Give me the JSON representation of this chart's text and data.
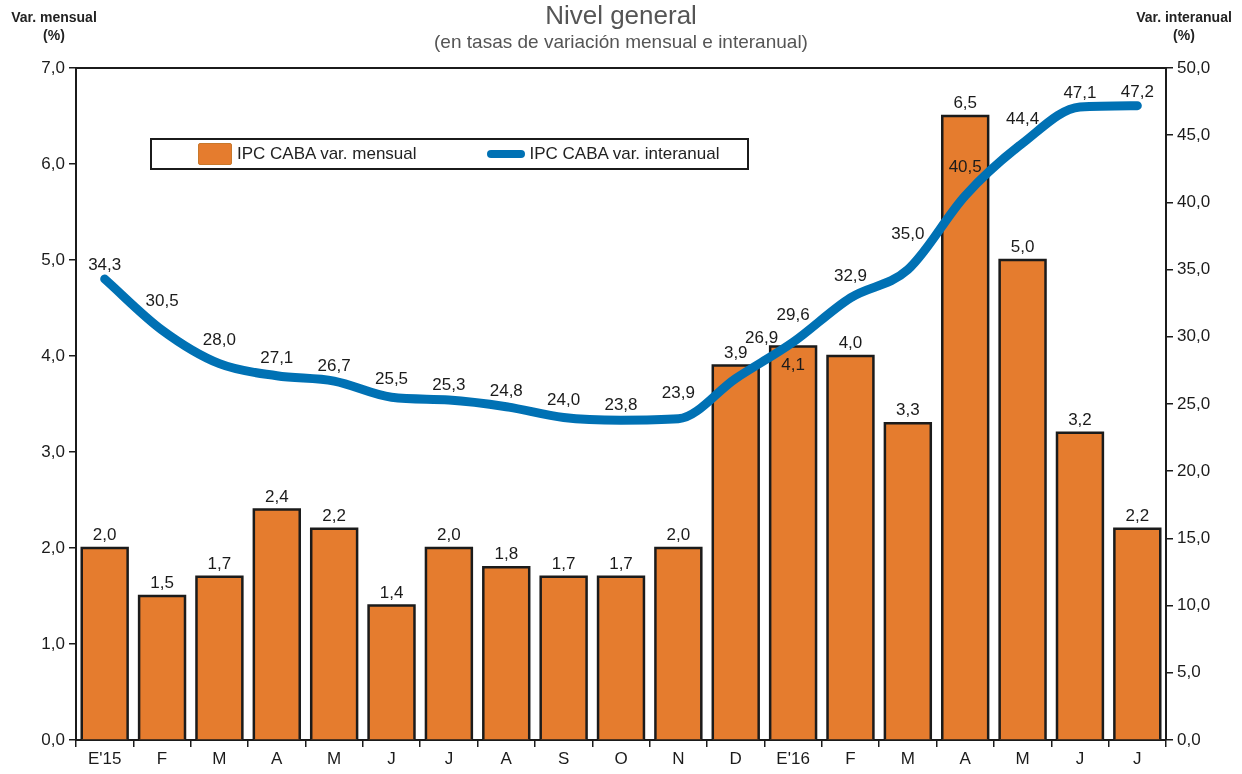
{
  "chart_data": {
    "type": "bar",
    "title": "Nivel general",
    "subtitle": "(en tasas de variación mensual e interanual)",
    "ylabel": "Var. mensual (%)",
    "y2label": "Var. interanual (%)",
    "categories": [
      "E'15",
      "F",
      "M",
      "A",
      "M",
      "J",
      "J",
      "A",
      "S",
      "O",
      "N",
      "D",
      "E'16",
      "F",
      "M",
      "A",
      "M",
      "J",
      "J"
    ],
    "series": [
      {
        "name": "IPC CABA var. mensual",
        "color": "#e57c2e",
        "values": [
          2.0,
          1.5,
          1.7,
          2.4,
          2.2,
          1.4,
          2.0,
          1.8,
          1.7,
          1.7,
          2.0,
          3.9,
          4.1,
          4.0,
          3.3,
          6.5,
          5.0,
          3.2,
          2.2
        ],
        "value_labels": [
          "2,0",
          "1,5",
          "1,7",
          "2,4",
          "2,2",
          "1,4",
          "2,0",
          "1,8",
          "1,7",
          "1,7",
          "2,0",
          "3,9",
          "4,1",
          "4,0",
          "3,3",
          "6,5",
          "5,0",
          "3,2",
          "2,2"
        ]
      },
      {
        "name": "IPC CABA var. interanual",
        "type": "line",
        "axis": "y2",
        "color": "#0071b4",
        "values": [
          34.3,
          30.5,
          28.0,
          27.1,
          26.7,
          25.5,
          25.3,
          24.8,
          24.0,
          23.8,
          23.9,
          26.9,
          29.6,
          32.9,
          35.0,
          40.5,
          44.4,
          47.1,
          47.2
        ],
        "value_labels": [
          "34,3",
          "30,5",
          "28,0",
          "27,1",
          "26,7",
          "25,5",
          "25,3",
          "24,8",
          "24,0",
          "23,8",
          "23,9",
          "26,9",
          "29,6",
          "32,9",
          "35,0",
          "40,5",
          "44,4",
          "47,1",
          "47,2"
        ]
      }
    ],
    "ylim": [
      0,
      7
    ],
    "yticks": [
      {
        "value": 0,
        "label": "0,0"
      },
      {
        "value": 1,
        "label": "1,0"
      },
      {
        "value": 2,
        "label": "2,0"
      },
      {
        "value": 3,
        "label": "3,0"
      },
      {
        "value": 4,
        "label": "4,0"
      },
      {
        "value": 5,
        "label": "5,0"
      },
      {
        "value": 6,
        "label": "6,0"
      },
      {
        "value": 7,
        "label": "7,0"
      }
    ],
    "y2lim": [
      0,
      50
    ],
    "y2ticks": [
      {
        "value": 0,
        "label": "0,0"
      },
      {
        "value": 5,
        "label": "5,0"
      },
      {
        "value": 10,
        "label": "10,0"
      },
      {
        "value": 15,
        "label": "15,0"
      },
      {
        "value": 20,
        "label": "20,0"
      },
      {
        "value": 25,
        "label": "25,0"
      },
      {
        "value": 30,
        "label": "30,0"
      },
      {
        "value": 35,
        "label": "35,0"
      },
      {
        "value": 40,
        "label": "40,0"
      },
      {
        "value": 45,
        "label": "45,0"
      },
      {
        "value": 50,
        "label": "50,0"
      }
    ],
    "legend": "top left",
    "grid": false
  }
}
